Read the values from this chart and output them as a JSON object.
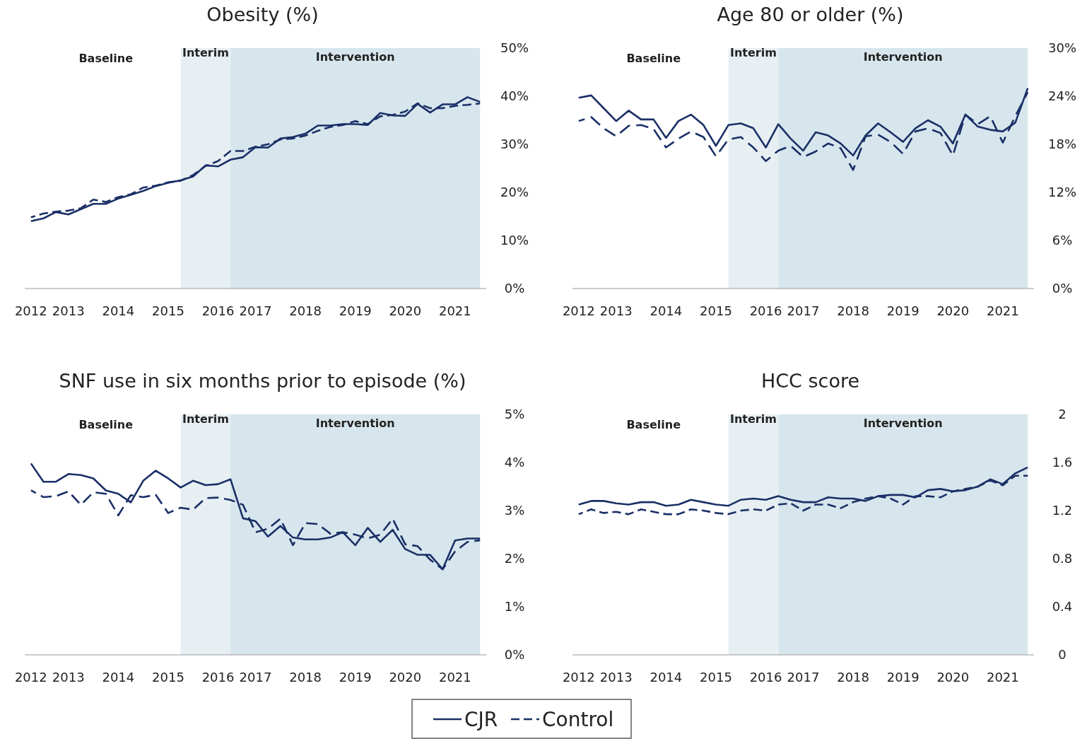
{
  "chart_data": [
    {
      "type": "line",
      "title": "Obesity (%)",
      "categories": [
        "2012",
        null,
        null,
        "2013",
        null,
        null,
        null,
        "2014",
        null,
        null,
        null,
        "2015",
        null,
        null,
        null,
        "2016",
        null,
        null,
        "2017",
        null,
        null,
        null,
        "2018",
        null,
        null,
        null,
        "2019",
        null,
        null,
        null,
        "2020",
        null,
        null,
        null,
        "2021",
        null,
        null
      ],
      "ylim": [
        0,
        50
      ],
      "yticks": [
        {
          "value": 0,
          "label": "0%"
        },
        {
          "value": 10,
          "label": "10%"
        },
        {
          "value": 20,
          "label": "20%"
        },
        {
          "value": 30,
          "label": "30%"
        },
        {
          "value": 40,
          "label": "40%"
        },
        {
          "value": 50,
          "label": "50%"
        }
      ],
      "legend": "bottom",
      "annotations": [
        "Baseline",
        "Interim",
        "Intervention"
      ],
      "series": [
        {
          "name": "CJR",
          "color": "#1a2f66",
          "line_style": "solid",
          "values": [
            14.0,
            14.6,
            15.9,
            15.4,
            16.5,
            17.6,
            17.6,
            18.7,
            19.5,
            20.3,
            21.3,
            22.0,
            22.5,
            23.3,
            25.6,
            25.4,
            26.8,
            27.3,
            29.4,
            29.3,
            31.2,
            31.5,
            32.2,
            33.9,
            33.9,
            34.2,
            34.2,
            34.0,
            36.5,
            36.0,
            35.9,
            38.4,
            36.6,
            38.3,
            38.3,
            39.8,
            38.8
          ]
        },
        {
          "name": "Control",
          "color": "#1a2f66",
          "line_style": "dashed",
          "values": [
            14.8,
            15.6,
            16.0,
            16.2,
            16.7,
            18.5,
            18.0,
            19.0,
            19.6,
            21.0,
            21.4,
            22.1,
            22.4,
            23.6,
            25.5,
            26.5,
            28.6,
            28.6,
            29.5,
            30.0,
            31.0,
            31.2,
            31.8,
            32.8,
            33.6,
            34.0,
            34.8,
            34.2,
            35.8,
            36.1,
            36.8,
            38.5,
            37.5,
            37.5,
            38.0,
            38.2,
            38.5
          ]
        }
      ]
    },
    {
      "type": "line",
      "title": "Age 80 or older (%)",
      "categories": [
        "2012",
        null,
        null,
        "2013",
        null,
        null,
        null,
        "2014",
        null,
        null,
        null,
        "2015",
        null,
        null,
        null,
        "2016",
        null,
        null,
        "2017",
        null,
        null,
        null,
        "2018",
        null,
        null,
        null,
        "2019",
        null,
        null,
        null,
        "2020",
        null,
        null,
        null,
        "2021",
        null,
        null
      ],
      "ylim": [
        0,
        30
      ],
      "yticks": [
        {
          "value": 0,
          "label": "0%"
        },
        {
          "value": 6,
          "label": "6%"
        },
        {
          "value": 12,
          "label": "12%"
        },
        {
          "value": 18,
          "label": "18%"
        },
        {
          "value": 24,
          "label": "24%"
        },
        {
          "value": 30,
          "label": "30%"
        }
      ],
      "annotations": [
        "Baseline",
        "Interim",
        "Intervention"
      ],
      "series": [
        {
          "color": "#1a2f66",
          "line_style": "solid",
          "values": [
            23.8,
            24.1,
            22.5,
            20.9,
            22.2,
            21.1,
            21.1,
            18.8,
            20.9,
            21.7,
            20.4,
            17.8,
            20.4,
            20.6,
            20.0,
            17.6,
            20.5,
            18.7,
            17.2,
            19.5,
            19.1,
            18.1,
            16.6,
            19.1,
            20.6,
            19.5,
            18.3,
            20.0,
            21.0,
            20.2,
            18.1,
            21.7,
            20.2,
            19.8,
            19.6,
            20.7,
            25.0
          ]
        },
        {
          "color": "#1a2f66",
          "line_style": "dashed",
          "values": [
            20.9,
            21.4,
            20.0,
            19.0,
            20.3,
            20.4,
            19.9,
            17.6,
            18.7,
            19.6,
            18.9,
            16.5,
            18.6,
            18.9,
            17.6,
            15.9,
            17.2,
            17.8,
            16.4,
            17.1,
            18.1,
            17.5,
            14.8,
            19.0,
            19.2,
            18.3,
            16.8,
            19.6,
            20.0,
            19.4,
            16.6,
            21.7,
            20.5,
            21.5,
            18.2,
            21.5,
            24.5
          ]
        }
      ]
    },
    {
      "type": "line",
      "title": "SNF use in six months prior to episode (%)",
      "categories": [
        "2012",
        null,
        null,
        "2013",
        null,
        null,
        null,
        "2014",
        null,
        null,
        null,
        "2015",
        null,
        null,
        null,
        "2016",
        null,
        null,
        "2017",
        null,
        null,
        null,
        "2018",
        null,
        null,
        null,
        "2019",
        null,
        null,
        null,
        "2020",
        null,
        null,
        null,
        "2021",
        null,
        null
      ],
      "ylim": [
        0,
        5
      ],
      "yticks": [
        {
          "value": 0,
          "label": "0%"
        },
        {
          "value": 1,
          "label": "1%"
        },
        {
          "value": 2,
          "label": "2%"
        },
        {
          "value": 3,
          "label": "3%"
        },
        {
          "value": 4,
          "label": "4%"
        },
        {
          "value": 5,
          "label": "5%"
        }
      ],
      "annotations": [
        "Baseline",
        "Interim",
        "Intervention"
      ],
      "series": [
        {
          "color": "#1a2f66",
          "line_style": "solid",
          "values": [
            3.98,
            3.6,
            3.6,
            3.76,
            3.74,
            3.67,
            3.42,
            3.35,
            3.17,
            3.62,
            3.83,
            3.67,
            3.48,
            3.62,
            3.53,
            3.55,
            3.65,
            2.84,
            2.78,
            2.46,
            2.68,
            2.44,
            2.4,
            2.4,
            2.44,
            2.55,
            2.28,
            2.64,
            2.35,
            2.6,
            2.2,
            2.08,
            2.08,
            1.78,
            2.38,
            2.42,
            2.42
          ]
        },
        {
          "color": "#1a2f66",
          "line_style": "dashed",
          "values": [
            3.42,
            3.28,
            3.3,
            3.4,
            3.12,
            3.38,
            3.35,
            2.9,
            3.32,
            3.28,
            3.33,
            2.95,
            3.06,
            3.02,
            3.26,
            3.27,
            3.22,
            3.12,
            2.55,
            2.62,
            2.83,
            2.28,
            2.74,
            2.72,
            2.52,
            2.55,
            2.5,
            2.42,
            2.5,
            2.83,
            2.3,
            2.26,
            1.98,
            1.78,
            2.15,
            2.35,
            2.38
          ]
        }
      ]
    },
    {
      "type": "line",
      "title": "HCC score",
      "categories": [
        "2012",
        null,
        null,
        "2013",
        null,
        null,
        null,
        "2014",
        null,
        null,
        null,
        "2015",
        null,
        null,
        null,
        "2016",
        null,
        null,
        "2017",
        null,
        null,
        null,
        "2018",
        null,
        null,
        null,
        "2019",
        null,
        null,
        null,
        "2020",
        null,
        null,
        null,
        "2021",
        null,
        null
      ],
      "ylim": [
        0,
        2
      ],
      "yticks": [
        0,
        0.4,
        0.8,
        1.2,
        1.6,
        2
      ],
      "annotations": [
        "Baseline",
        "Interim",
        "Intervention"
      ],
      "series": [
        {
          "color": "#1a2f66",
          "line_style": "solid",
          "values": [
            1.25,
            1.28,
            1.28,
            1.26,
            1.25,
            1.27,
            1.27,
            1.24,
            1.25,
            1.29,
            1.27,
            1.25,
            1.24,
            1.29,
            1.3,
            1.29,
            1.32,
            1.29,
            1.27,
            1.27,
            1.31,
            1.3,
            1.3,
            1.28,
            1.32,
            1.33,
            1.33,
            1.31,
            1.37,
            1.38,
            1.36,
            1.37,
            1.4,
            1.46,
            1.42,
            1.51,
            1.56
          ]
        },
        {
          "color": "#1a2f66",
          "line_style": "dashed",
          "values": [
            1.17,
            1.21,
            1.18,
            1.19,
            1.17,
            1.21,
            1.19,
            1.17,
            1.17,
            1.21,
            1.2,
            1.18,
            1.17,
            1.2,
            1.21,
            1.2,
            1.25,
            1.26,
            1.2,
            1.25,
            1.25,
            1.22,
            1.27,
            1.3,
            1.32,
            1.3,
            1.25,
            1.32,
            1.32,
            1.31,
            1.36,
            1.38,
            1.4,
            1.45,
            1.41,
            1.49,
            1.49
          ]
        }
      ]
    }
  ]
}
